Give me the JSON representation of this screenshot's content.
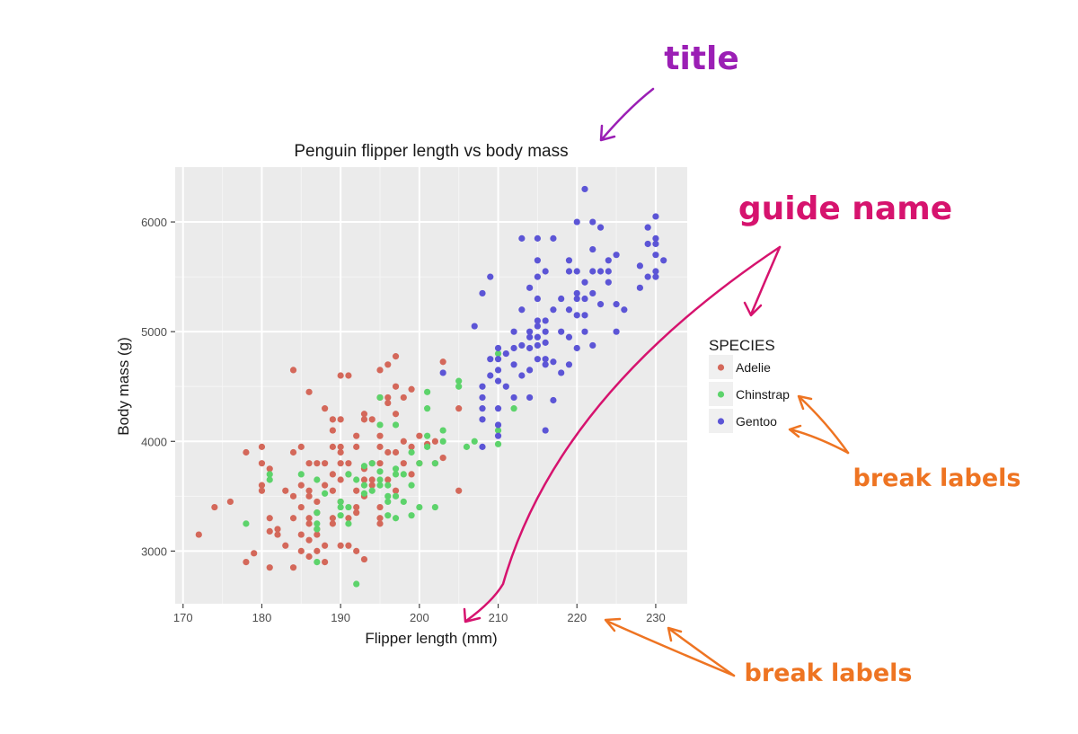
{
  "chart_data": {
    "type": "scatter",
    "title": "Penguin flipper length vs body mass",
    "xlabel": "Flipper length (mm)",
    "ylabel": "Body mass (g)",
    "xlim": [
      169,
      234
    ],
    "ylim": [
      2520,
      6500
    ],
    "x_ticks": [
      170,
      180,
      190,
      200,
      210,
      220,
      230
    ],
    "y_ticks": [
      3000,
      4000,
      5000,
      6000
    ],
    "grid": true,
    "legend": {
      "title": "SPECIES",
      "position": "right"
    },
    "series": [
      {
        "name": "Adelie",
        "color": "#d4685a",
        "points": [
          [
            172,
            3150
          ],
          [
            174,
            3400
          ],
          [
            176,
            3450
          ],
          [
            178,
            3900
          ],
          [
            178,
            2900
          ],
          [
            179,
            2980
          ],
          [
            180,
            3950
          ],
          [
            180,
            3600
          ],
          [
            180,
            3550
          ],
          [
            180,
            3800
          ],
          [
            181,
            3750
          ],
          [
            181,
            3300
          ],
          [
            181,
            3180
          ],
          [
            181,
            2850
          ],
          [
            182,
            3200
          ],
          [
            182,
            3150
          ],
          [
            183,
            3550
          ],
          [
            183,
            3050
          ],
          [
            184,
            3900
          ],
          [
            184,
            3500
          ],
          [
            184,
            3300
          ],
          [
            184,
            2850
          ],
          [
            184,
            4650
          ],
          [
            185,
            3950
          ],
          [
            185,
            3600
          ],
          [
            185,
            3400
          ],
          [
            185,
            3150
          ],
          [
            185,
            3000
          ],
          [
            186,
            4450
          ],
          [
            186,
            3800
          ],
          [
            186,
            3550
          ],
          [
            186,
            3500
          ],
          [
            186,
            3300
          ],
          [
            186,
            3100
          ],
          [
            186,
            2950
          ],
          [
            187,
            3800
          ],
          [
            187,
            3450
          ],
          [
            187,
            3350
          ],
          [
            187,
            3200
          ],
          [
            187,
            3150
          ],
          [
            187,
            3000
          ],
          [
            188,
            4300
          ],
          [
            188,
            3800
          ],
          [
            188,
            3600
          ],
          [
            188,
            3050
          ],
          [
            188,
            2900
          ],
          [
            189,
            3950
          ],
          [
            189,
            3700
          ],
          [
            189,
            3550
          ],
          [
            189,
            3300
          ],
          [
            189,
            3250
          ],
          [
            189,
            4100
          ],
          [
            190,
            4600
          ],
          [
            190,
            3950
          ],
          [
            190,
            3900
          ],
          [
            190,
            3800
          ],
          [
            190,
            3650
          ],
          [
            190,
            3450
          ],
          [
            190,
            3050
          ],
          [
            190,
            4200
          ],
          [
            191,
            4600
          ],
          [
            191,
            3800
          ],
          [
            191,
            3700
          ],
          [
            191,
            3300
          ],
          [
            191,
            3050
          ],
          [
            192,
            4050
          ],
          [
            192,
            3950
          ],
          [
            192,
            3550
          ],
          [
            192,
            3400
          ],
          [
            192,
            3000
          ],
          [
            193,
            4250
          ],
          [
            193,
            4200
          ],
          [
            193,
            3750
          ],
          [
            193,
            3650
          ],
          [
            193,
            3500
          ],
          [
            193,
            2925
          ],
          [
            194,
            4200
          ],
          [
            194,
            3800
          ],
          [
            194,
            3650
          ],
          [
            194,
            3600
          ],
          [
            195,
            4650
          ],
          [
            195,
            4050
          ],
          [
            195,
            3950
          ],
          [
            195,
            3800
          ],
          [
            195,
            3400
          ],
          [
            195,
            3300
          ],
          [
            195,
            3250
          ],
          [
            196,
            4700
          ],
          [
            196,
            4400
          ],
          [
            196,
            4350
          ],
          [
            196,
            3900
          ],
          [
            196,
            3650
          ],
          [
            197,
            4500
          ],
          [
            197,
            4250
          ],
          [
            197,
            3900
          ],
          [
            197,
            3550
          ],
          [
            197,
            4775
          ],
          [
            198,
            4400
          ],
          [
            198,
            4000
          ],
          [
            198,
            3800
          ],
          [
            199,
            4475
          ],
          [
            199,
            3950
          ],
          [
            199,
            3700
          ],
          [
            200,
            4050
          ],
          [
            200,
            3800
          ],
          [
            201,
            3975
          ],
          [
            202,
            3800
          ],
          [
            202,
            4000
          ],
          [
            203,
            4725
          ],
          [
            203,
            3850
          ],
          [
            205,
            4300
          ],
          [
            205,
            3550
          ],
          [
            195,
            4400
          ],
          [
            192,
            3350
          ],
          [
            186,
            3250
          ],
          [
            189,
            4200
          ]
        ]
      },
      {
        "name": "Chinstrap",
        "color": "#5dd36b",
        "points": [
          [
            178,
            3250
          ],
          [
            181,
            3700
          ],
          [
            181,
            3650
          ],
          [
            185,
            3700
          ],
          [
            187,
            3650
          ],
          [
            187,
            3350
          ],
          [
            187,
            3250
          ],
          [
            187,
            3200
          ],
          [
            187,
            2900
          ],
          [
            188,
            3525
          ],
          [
            190,
            3450
          ],
          [
            190,
            3400
          ],
          [
            190,
            3325
          ],
          [
            191,
            3700
          ],
          [
            191,
            3400
          ],
          [
            191,
            3250
          ],
          [
            192,
            2700
          ],
          [
            192,
            3650
          ],
          [
            193,
            3775
          ],
          [
            193,
            3600
          ],
          [
            193,
            3525
          ],
          [
            194,
            3800
          ],
          [
            194,
            3550
          ],
          [
            195,
            4400
          ],
          [
            195,
            4150
          ],
          [
            195,
            3725
          ],
          [
            195,
            3650
          ],
          [
            195,
            3600
          ],
          [
            196,
            3600
          ],
          [
            196,
            3500
          ],
          [
            196,
            3450
          ],
          [
            196,
            3325
          ],
          [
            197,
            4150
          ],
          [
            197,
            3750
          ],
          [
            197,
            3700
          ],
          [
            197,
            3500
          ],
          [
            197,
            3300
          ],
          [
            198,
            3700
          ],
          [
            198,
            3450
          ],
          [
            199,
            3900
          ],
          [
            199,
            3600
          ],
          [
            199,
            3325
          ],
          [
            200,
            3800
          ],
          [
            200,
            3400
          ],
          [
            201,
            4450
          ],
          [
            201,
            4300
          ],
          [
            201,
            4050
          ],
          [
            201,
            3950
          ],
          [
            202,
            3800
          ],
          [
            202,
            3400
          ],
          [
            203,
            4100
          ],
          [
            203,
            4000
          ],
          [
            205,
            4550
          ],
          [
            205,
            4500
          ],
          [
            206,
            3950
          ],
          [
            207,
            4000
          ],
          [
            210,
            4800
          ],
          [
            210,
            4100
          ],
          [
            210,
            3975
          ],
          [
            212,
            4300
          ]
        ]
      },
      {
        "name": "Gentoo",
        "color": "#5c55d6",
        "points": [
          [
            203,
            4625
          ],
          [
            207,
            5050
          ],
          [
            208,
            5350
          ],
          [
            208,
            4500
          ],
          [
            208,
            4400
          ],
          [
            208,
            4300
          ],
          [
            208,
            4200
          ],
          [
            208,
            3950
          ],
          [
            209,
            5500
          ],
          [
            209,
            4750
          ],
          [
            209,
            4600
          ],
          [
            210,
            4850
          ],
          [
            210,
            4750
          ],
          [
            210,
            4650
          ],
          [
            210,
            4550
          ],
          [
            210,
            4300
          ],
          [
            210,
            4150
          ],
          [
            210,
            4050
          ],
          [
            211,
            4800
          ],
          [
            211,
            4500
          ],
          [
            212,
            5000
          ],
          [
            212,
            4850
          ],
          [
            212,
            4700
          ],
          [
            212,
            4400
          ],
          [
            213,
            4875
          ],
          [
            213,
            5850
          ],
          [
            213,
            5200
          ],
          [
            213,
            4600
          ],
          [
            214,
            5400
          ],
          [
            214,
            5000
          ],
          [
            214,
            4950
          ],
          [
            214,
            4850
          ],
          [
            214,
            4650
          ],
          [
            214,
            4400
          ],
          [
            215,
            5650
          ],
          [
            215,
            5500
          ],
          [
            215,
            5300
          ],
          [
            215,
            5100
          ],
          [
            215,
            5050
          ],
          [
            215,
            4950
          ],
          [
            215,
            4875
          ],
          [
            215,
            4750
          ],
          [
            215,
            5850
          ],
          [
            216,
            5550
          ],
          [
            216,
            5100
          ],
          [
            216,
            5000
          ],
          [
            216,
            4750
          ],
          [
            216,
            4700
          ],
          [
            216,
            4100
          ],
          [
            216,
            4900
          ],
          [
            217,
            5850
          ],
          [
            217,
            5200
          ],
          [
            217,
            4725
          ],
          [
            217,
            4375
          ],
          [
            218,
            5300
          ],
          [
            218,
            5000
          ],
          [
            218,
            4625
          ],
          [
            219,
            5650
          ],
          [
            219,
            5550
          ],
          [
            219,
            5200
          ],
          [
            219,
            4950
          ],
          [
            219,
            4700
          ],
          [
            220,
            6000
          ],
          [
            220,
            5550
          ],
          [
            220,
            5350
          ],
          [
            220,
            5300
          ],
          [
            220,
            5150
          ],
          [
            220,
            4850
          ],
          [
            221,
            6300
          ],
          [
            221,
            5450
          ],
          [
            221,
            5300
          ],
          [
            221,
            5150
          ],
          [
            221,
            5000
          ],
          [
            222,
            6000
          ],
          [
            222,
            5750
          ],
          [
            222,
            5550
          ],
          [
            222,
            5350
          ],
          [
            222,
            4875
          ],
          [
            223,
            5950
          ],
          [
            223,
            5550
          ],
          [
            223,
            5250
          ],
          [
            224,
            5650
          ],
          [
            224,
            5450
          ],
          [
            224,
            5550
          ],
          [
            225,
            5700
          ],
          [
            225,
            5250
          ],
          [
            225,
            5000
          ],
          [
            226,
            5200
          ],
          [
            228,
            5600
          ],
          [
            228,
            5400
          ],
          [
            229,
            5950
          ],
          [
            229,
            5800
          ],
          [
            229,
            5500
          ],
          [
            230,
            6050
          ],
          [
            230,
            5850
          ],
          [
            230,
            5800
          ],
          [
            230,
            5700
          ],
          [
            230,
            5550
          ],
          [
            230,
            5500
          ],
          [
            231,
            5650
          ]
        ]
      }
    ]
  },
  "annotations": {
    "title_label": "title",
    "guide_label": "guide name",
    "break_label_legend": "break labels",
    "break_label_axis": "break labels",
    "colors": {
      "title": "#9b1fb5",
      "guide": "#d6136e",
      "break": "#ee7422"
    }
  }
}
